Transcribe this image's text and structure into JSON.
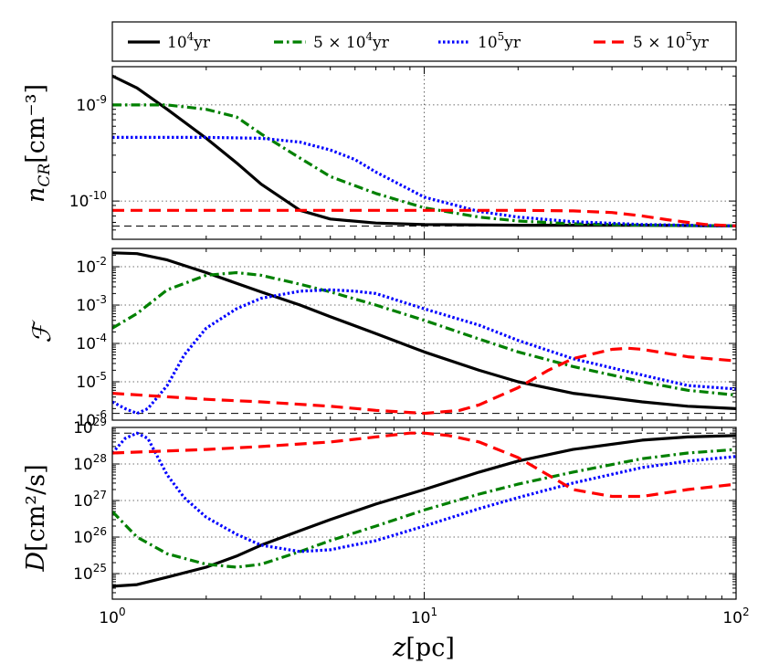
{
  "chart_data": [
    {
      "type": "line",
      "panel": "top",
      "ylabel_main": "n",
      "ylabel_sub": "CR",
      "ylabel_unit": "[cm⁻³]",
      "xscale": "log",
      "yscale": "log",
      "xlim": [
        1,
        100
      ],
      "ylim": [
        4e-11,
        2.5e-09
      ],
      "yticks": [
        {
          "base": "10",
          "exp": "-9",
          "value": 1e-09
        },
        {
          "base": "10",
          "exp": "-10",
          "value": 1e-10
        }
      ],
      "grid": true,
      "reference_y": 5.5e-11,
      "series": [
        {
          "name": "10^4yr",
          "color": "#000000",
          "style": "solid",
          "x": [
            1,
            1.2,
            1.5,
            2,
            2.5,
            3,
            4,
            5,
            7,
            10,
            20,
            50,
            100
          ],
          "y": [
            2e-09,
            1.5e-09,
            9e-10,
            4.5e-10,
            2.5e-10,
            1.5e-10,
            8e-11,
            6.5e-11,
            5.9e-11,
            5.7e-11,
            5.6e-11,
            5.6e-11,
            5.5e-11
          ]
        },
        {
          "name": "5×10^4yr",
          "color": "#008000",
          "style": "dashdot",
          "x": [
            1,
            1.5,
            2,
            2.5,
            3,
            4,
            5,
            7,
            10,
            15,
            20,
            30,
            50,
            100
          ],
          "y": [
            1e-09,
            1e-09,
            9e-10,
            7.5e-10,
            5e-10,
            2.8e-10,
            1.8e-10,
            1.2e-10,
            8.5e-11,
            6.8e-11,
            6.2e-11,
            5.8e-11,
            5.6e-11,
            5.5e-11
          ]
        },
        {
          "name": "10^5yr",
          "color": "#0000ff",
          "style": "dotted",
          "x": [
            1,
            2,
            3,
            4,
            5,
            6,
            7,
            10,
            15,
            20,
            30,
            50,
            70,
            100
          ],
          "y": [
            4.6e-10,
            4.6e-10,
            4.5e-10,
            4.1e-10,
            3.4e-10,
            2.7e-10,
            2e-10,
            1.1e-10,
            7.8e-11,
            6.8e-11,
            6.1e-11,
            5.7e-11,
            5.6e-11,
            5.5e-11
          ]
        },
        {
          "name": "5×10^5yr",
          "color": "#ff0000",
          "style": "dashed",
          "x": [
            1,
            5,
            10,
            20,
            30,
            40,
            50,
            60,
            70,
            80,
            100
          ],
          "y": [
            8e-11,
            8e-11,
            8e-11,
            8e-11,
            7.9e-11,
            7.6e-11,
            7e-11,
            6.4e-11,
            6e-11,
            5.7e-11,
            5.5e-11
          ]
        }
      ]
    },
    {
      "type": "line",
      "panel": "middle",
      "ylabel_main": "ℱ",
      "xscale": "log",
      "yscale": "log",
      "xlim": [
        1,
        100
      ],
      "ylim": [
        1e-06,
        0.03
      ],
      "yticks": [
        {
          "base": "10",
          "exp": "-2",
          "value": 0.01
        },
        {
          "base": "10",
          "exp": "-3",
          "value": 0.001
        },
        {
          "base": "10",
          "exp": "-4",
          "value": 0.0001
        },
        {
          "base": "10",
          "exp": "-5",
          "value": 1e-05
        },
        {
          "base": "10",
          "exp": "-6",
          "value": 1e-06
        }
      ],
      "grid": true,
      "reference_y": 1.5e-06,
      "series": [
        {
          "name": "10^4yr",
          "color": "#000000",
          "style": "solid",
          "x": [
            1,
            1.2,
            1.5,
            2,
            3,
            4,
            5,
            7,
            10,
            15,
            20,
            30,
            50,
            70,
            100
          ],
          "y": [
            0.023,
            0.022,
            0.015,
            0.007,
            0.0022,
            0.001,
            0.0005,
            0.00018,
            6e-05,
            2e-05,
            1e-05,
            5e-06,
            3e-06,
            2.3e-06,
            2e-06
          ]
        },
        {
          "name": "5×10^4yr",
          "color": "#008000",
          "style": "dashdot",
          "x": [
            1,
            1.2,
            1.5,
            2,
            2.5,
            3,
            4,
            5,
            7,
            10,
            15,
            20,
            30,
            50,
            70,
            100
          ],
          "y": [
            0.00025,
            0.0006,
            0.0025,
            0.006,
            0.007,
            0.006,
            0.0035,
            0.0022,
            0.001,
            0.0004,
            0.00013,
            6e-05,
            2.5e-05,
            1e-05,
            6e-06,
            4.5e-06
          ]
        },
        {
          "name": "10^5yr",
          "color": "#0000ff",
          "style": "dotted",
          "x": [
            1,
            1.1,
            1.2,
            1.3,
            1.5,
            1.7,
            2,
            2.5,
            3,
            4,
            5,
            6,
            7,
            10,
            15,
            20,
            30,
            50,
            70,
            100
          ],
          "y": [
            3e-06,
            2e-06,
            1.5e-06,
            2e-06,
            8e-06,
            5e-05,
            0.00025,
            0.0008,
            0.0015,
            0.0023,
            0.0025,
            0.0023,
            0.002,
            0.0008,
            0.0003,
            0.00012,
            4e-05,
            1.5e-05,
            8e-06,
            6.5e-06
          ]
        },
        {
          "name": "5×10^5yr",
          "color": "#ff0000",
          "style": "dashed",
          "x": [
            1,
            2,
            3,
            5,
            7,
            10,
            13,
            15,
            20,
            25,
            30,
            40,
            45,
            50,
            60,
            70,
            100
          ],
          "y": [
            5e-06,
            3.5e-06,
            3e-06,
            2.3e-06,
            1.8e-06,
            1.5e-06,
            1.8e-06,
            2.5e-06,
            7e-06,
            2e-05,
            4e-05,
            7e-05,
            7.5e-05,
            7e-05,
            5.5e-05,
            4.5e-05,
            3.5e-05
          ]
        }
      ]
    },
    {
      "type": "line",
      "panel": "bottom",
      "ylabel_main": "D",
      "ylabel_unit": "[cm²/s]",
      "xlabel_main": "z",
      "xlabel_unit": "[pc]",
      "xscale": "log",
      "yscale": "log",
      "xlim": [
        1,
        100
      ],
      "ylim": [
        2e+24,
        1e+29
      ],
      "yticks": [
        {
          "base": "10",
          "exp": "29",
          "value": 1e+29
        },
        {
          "base": "10",
          "exp": "28",
          "value": 1e+28
        },
        {
          "base": "10",
          "exp": "27",
          "value": 1e+27
        },
        {
          "base": "10",
          "exp": "26",
          "value": 1e+26
        },
        {
          "base": "10",
          "exp": "25",
          "value": 1e+25
        }
      ],
      "xticks": [
        {
          "base": "10",
          "exp": "0",
          "value": 1
        },
        {
          "base": "10",
          "exp": "1",
          "value": 10
        },
        {
          "base": "10",
          "exp": "2",
          "value": 100
        }
      ],
      "grid": true,
      "reference_y": 7e+28,
      "series": [
        {
          "name": "10^4yr",
          "color": "#000000",
          "style": "solid",
          "x": [
            1,
            1.2,
            1.5,
            2,
            2.5,
            3,
            4,
            5,
            7,
            10,
            15,
            20,
            30,
            50,
            70,
            100
          ],
          "y": [
            4.5e+24,
            5e+24,
            8e+24,
            1.5e+25,
            3e+25,
            6e+25,
            1.5e+26,
            3e+26,
            8e+26,
            2e+27,
            6e+27,
            1.2e+28,
            2.5e+28,
            4.5e+28,
            5.5e+28,
            6e+28
          ]
        },
        {
          "name": "5×10^4yr",
          "color": "#008000",
          "style": "dashdot",
          "x": [
            1,
            1.2,
            1.5,
            2,
            2.5,
            3,
            4,
            5,
            7,
            10,
            15,
            20,
            30,
            50,
            70,
            100
          ],
          "y": [
            5e+26,
            1e+26,
            3.5e+25,
            1.8e+25,
            1.5e+25,
            1.8e+25,
            4e+25,
            8e+25,
            2e+26,
            5.5e+26,
            1.5e+27,
            2.8e+27,
            6e+27,
            1.4e+28,
            2e+28,
            2.5e+28
          ]
        },
        {
          "name": "10^5yr",
          "color": "#0000ff",
          "style": "dotted",
          "x": [
            1,
            1.1,
            1.2,
            1.3,
            1.5,
            1.7,
            2,
            2.5,
            3,
            4,
            5,
            7,
            10,
            15,
            20,
            30,
            50,
            70,
            100
          ],
          "y": [
            2e+28,
            5e+28,
            7e+28,
            5e+28,
            5e+27,
            1.2e+27,
            3.5e+26,
            1.2e+26,
            6e+25,
            4e+25,
            4.5e+25,
            8e+25,
            2e+26,
            6e+26,
            1.2e+27,
            3e+27,
            8e+27,
            1.2e+28,
            1.6e+28
          ]
        },
        {
          "name": "5×10^5yr",
          "color": "#ff0000",
          "style": "dashed",
          "x": [
            1,
            2,
            3,
            5,
            7,
            9,
            10,
            12,
            15,
            20,
            25,
            30,
            40,
            50,
            70,
            100
          ],
          "y": [
            2e+28,
            2.5e+28,
            3e+28,
            4e+28,
            5.5e+28,
            7e+28,
            7e+28,
            6e+28,
            4e+28,
            1.5e+28,
            5e+27,
            2e+27,
            1.3e+27,
            1.3e+27,
            2e+27,
            2.8e+27
          ]
        }
      ]
    }
  ],
  "legend": {
    "items": [
      {
        "base": "10",
        "exp": "4",
        "suffix": "yr",
        "prefix": "",
        "color": "#000000",
        "style": "solid"
      },
      {
        "base": "10",
        "exp": "4",
        "suffix": "yr",
        "prefix": "5 × ",
        "color": "#008000",
        "style": "dashdot"
      },
      {
        "base": "10",
        "exp": "5",
        "suffix": "yr",
        "prefix": "",
        "color": "#0000ff",
        "style": "dotted"
      },
      {
        "base": "10",
        "exp": "5",
        "suffix": "yr",
        "prefix": "5 × ",
        "color": "#ff0000",
        "style": "dashed"
      }
    ]
  }
}
